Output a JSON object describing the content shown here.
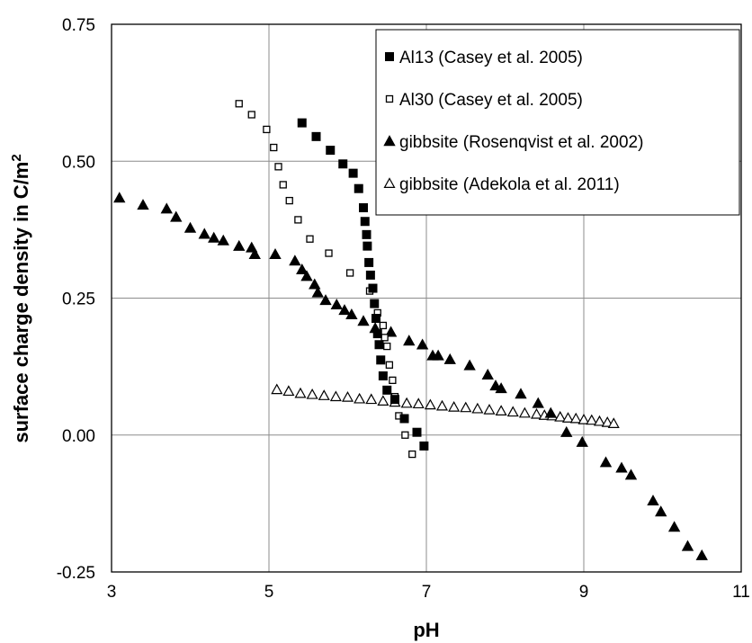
{
  "chart_data": {
    "type": "scatter",
    "xlabel": "pH",
    "ylabel": "surface charge density in C/m",
    "ylabel_superscript": "2",
    "xlim": [
      3,
      11
    ],
    "ylim": [
      -0.25,
      0.75
    ],
    "xticks": [
      "3",
      "5",
      "7",
      "9",
      "11"
    ],
    "yticks": [
      "-0.25",
      "0.00",
      "0.25",
      "0.50",
      "0.75"
    ],
    "grid": true,
    "legend_position": "top-right",
    "series": [
      {
        "name": "Al13 (Casey et al. 2005)",
        "marker": "square-filled",
        "color": "#000000",
        "points": [
          [
            5.42,
            0.57
          ],
          [
            5.6,
            0.545
          ],
          [
            5.78,
            0.52
          ],
          [
            5.94,
            0.495
          ],
          [
            6.07,
            0.478
          ],
          [
            6.14,
            0.45
          ],
          [
            6.2,
            0.415
          ],
          [
            6.22,
            0.39
          ],
          [
            6.24,
            0.366
          ],
          [
            6.25,
            0.345
          ],
          [
            6.27,
            0.315
          ],
          [
            6.29,
            0.292
          ],
          [
            6.32,
            0.268
          ],
          [
            6.34,
            0.24
          ],
          [
            6.36,
            0.213
          ],
          [
            6.38,
            0.185
          ],
          [
            6.4,
            0.165
          ],
          [
            6.42,
            0.137
          ],
          [
            6.45,
            0.108
          ],
          [
            6.5,
            0.082
          ],
          [
            6.6,
            0.065
          ],
          [
            6.72,
            0.03
          ],
          [
            6.88,
            0.005
          ],
          [
            6.97,
            -0.02
          ]
        ]
      },
      {
        "name": "Al30 (Casey et al. 2005)",
        "marker": "square-open",
        "color": "#000000",
        "points": [
          [
            4.62,
            0.605
          ],
          [
            4.78,
            0.585
          ],
          [
            4.97,
            0.558
          ],
          [
            5.06,
            0.525
          ],
          [
            5.12,
            0.49
          ],
          [
            5.18,
            0.457
          ],
          [
            5.26,
            0.428
          ],
          [
            5.37,
            0.393
          ],
          [
            5.52,
            0.358
          ],
          [
            5.76,
            0.332
          ],
          [
            6.03,
            0.296
          ],
          [
            6.28,
            0.263
          ],
          [
            6.38,
            0.223
          ],
          [
            6.45,
            0.2
          ],
          [
            6.47,
            0.178
          ],
          [
            6.5,
            0.162
          ],
          [
            6.53,
            0.128
          ],
          [
            6.57,
            0.1
          ],
          [
            6.6,
            0.07
          ],
          [
            6.65,
            0.035
          ],
          [
            6.73,
            0.0
          ],
          [
            6.82,
            -0.035
          ]
        ]
      },
      {
        "name": "gibbsite (Rosenqvist et al. 2002)",
        "marker": "triangle-filled",
        "color": "#000000",
        "points": [
          [
            3.1,
            0.433
          ],
          [
            3.4,
            0.42
          ],
          [
            3.7,
            0.413
          ],
          [
            3.82,
            0.398
          ],
          [
            4.0,
            0.378
          ],
          [
            4.18,
            0.367
          ],
          [
            4.3,
            0.36
          ],
          [
            4.42,
            0.355
          ],
          [
            4.62,
            0.345
          ],
          [
            4.78,
            0.342
          ],
          [
            4.82,
            0.33
          ],
          [
            5.08,
            0.33
          ],
          [
            5.33,
            0.318
          ],
          [
            5.42,
            0.302
          ],
          [
            5.48,
            0.29
          ],
          [
            5.58,
            0.275
          ],
          [
            5.62,
            0.26
          ],
          [
            5.72,
            0.246
          ],
          [
            5.86,
            0.238
          ],
          [
            5.96,
            0.228
          ],
          [
            6.05,
            0.22
          ],
          [
            6.2,
            0.208
          ],
          [
            6.35,
            0.195
          ],
          [
            6.55,
            0.188
          ],
          [
            6.78,
            0.172
          ],
          [
            6.95,
            0.165
          ],
          [
            7.08,
            0.145
          ],
          [
            7.15,
            0.145
          ],
          [
            7.3,
            0.138
          ],
          [
            7.55,
            0.127
          ],
          [
            7.78,
            0.11
          ],
          [
            7.88,
            0.09
          ],
          [
            7.95,
            0.085
          ],
          [
            8.2,
            0.075
          ],
          [
            8.42,
            0.058
          ],
          [
            8.58,
            0.04
          ],
          [
            8.78,
            0.005
          ],
          [
            8.98,
            -0.013
          ],
          [
            9.28,
            -0.05
          ],
          [
            9.48,
            -0.06
          ],
          [
            9.6,
            -0.073
          ],
          [
            9.88,
            -0.12
          ],
          [
            9.98,
            -0.14
          ],
          [
            10.15,
            -0.168
          ],
          [
            10.32,
            -0.203
          ],
          [
            10.5,
            -0.22
          ]
        ]
      },
      {
        "name": "gibbsite (Adekola et al. 2011)",
        "marker": "triangle-open",
        "color": "#000000",
        "points": [
          [
            5.1,
            0.083
          ],
          [
            5.25,
            0.08
          ],
          [
            5.4,
            0.076
          ],
          [
            5.55,
            0.074
          ],
          [
            5.7,
            0.072
          ],
          [
            5.85,
            0.07
          ],
          [
            6.0,
            0.069
          ],
          [
            6.15,
            0.066
          ],
          [
            6.3,
            0.065
          ],
          [
            6.45,
            0.062
          ],
          [
            6.6,
            0.06
          ],
          [
            6.75,
            0.058
          ],
          [
            6.9,
            0.057
          ],
          [
            7.05,
            0.055
          ],
          [
            7.2,
            0.053
          ],
          [
            7.35,
            0.051
          ],
          [
            7.5,
            0.05
          ],
          [
            7.65,
            0.048
          ],
          [
            7.8,
            0.046
          ],
          [
            7.95,
            0.044
          ],
          [
            8.1,
            0.042
          ],
          [
            8.25,
            0.04
          ],
          [
            8.4,
            0.038
          ],
          [
            8.5,
            0.036
          ],
          [
            8.6,
            0.035
          ],
          [
            8.7,
            0.033
          ],
          [
            8.8,
            0.031
          ],
          [
            8.9,
            0.03
          ],
          [
            9.0,
            0.028
          ],
          [
            9.1,
            0.027
          ],
          [
            9.2,
            0.025
          ],
          [
            9.3,
            0.023
          ],
          [
            9.38,
            0.021
          ]
        ]
      }
    ]
  }
}
